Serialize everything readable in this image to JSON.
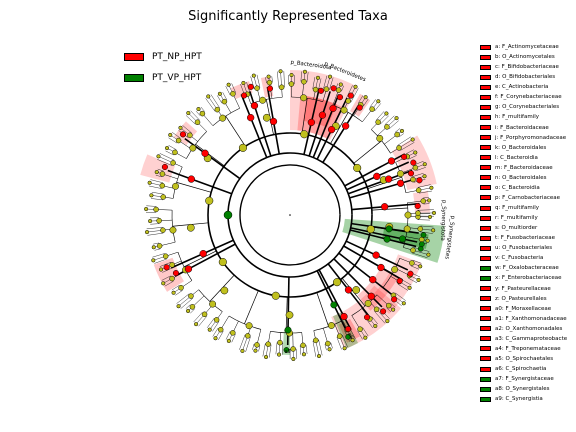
{
  "title": "Significantly Represented Taxa",
  "colors": {
    "PT_NP_HPT": "#ff0000",
    "PT_VP_HPT": "#008000",
    "node": "#c0c01e",
    "line": "#000000"
  },
  "groups": [
    {
      "name": "PT_NP_HPT",
      "color": "#ff0000"
    },
    {
      "name": "PT_VP_HPT",
      "color": "#008000"
    }
  ],
  "taxa_legend": [
    {
      "text": "a: F_Actinomycetaceae",
      "group": "PT_NP_HPT"
    },
    {
      "text": "b: O_Actinomycetales",
      "group": "PT_NP_HPT"
    },
    {
      "text": "c: F_Bifidobacteriaceae",
      "group": "PT_NP_HPT"
    },
    {
      "text": "d: O_Bifidobacteriales",
      "group": "PT_NP_HPT"
    },
    {
      "text": "e: C_Actinobacteria",
      "group": "PT_NP_HPT"
    },
    {
      "text": "f: F_Corynebacteriaceae",
      "group": "PT_NP_HPT"
    },
    {
      "text": "g: O_Corynebacteriales",
      "group": "PT_NP_HPT"
    },
    {
      "text": "h: F_multifamily",
      "group": "PT_NP_HPT"
    },
    {
      "text": "i: F_Bacteroidaceae",
      "group": "PT_NP_HPT"
    },
    {
      "text": "j: F_Porphyromonadaceae",
      "group": "PT_NP_HPT"
    },
    {
      "text": "k: O_Bacteroidales",
      "group": "PT_NP_HPT"
    },
    {
      "text": "l: C_Bacteroidia",
      "group": "PT_NP_HPT"
    },
    {
      "text": "m: F_Bacteroidaceae",
      "group": "PT_NP_HPT"
    },
    {
      "text": "n: O_Bacteroidales",
      "group": "PT_NP_HPT"
    },
    {
      "text": "o: C_Bacteroidia",
      "group": "PT_NP_HPT"
    },
    {
      "text": "p: F_Carnobacteriaceae",
      "group": "PT_NP_HPT"
    },
    {
      "text": "q: F_multifamily",
      "group": "PT_NP_HPT"
    },
    {
      "text": "r: F_multifamily",
      "group": "PT_NP_HPT"
    },
    {
      "text": "s: O_multiorder",
      "group": "PT_NP_HPT"
    },
    {
      "text": "t: F_Fusobacteriaceae",
      "group": "PT_NP_HPT"
    },
    {
      "text": "u: O_Fusobacteriales",
      "group": "PT_NP_HPT"
    },
    {
      "text": "v: C_Fusobacteria",
      "group": "PT_NP_HPT"
    },
    {
      "text": "w: F_Oxalobacteraceae",
      "group": "PT_VP_HPT"
    },
    {
      "text": "x: F_Enterobacteriaceae",
      "group": "PT_VP_HPT"
    },
    {
      "text": "y: F_Pasteurellaceae",
      "group": "PT_NP_HPT"
    },
    {
      "text": "z: O_Pasteurellales",
      "group": "PT_NP_HPT"
    },
    {
      "text": "a0: F_Moraxellaceae",
      "group": "PT_NP_HPT"
    },
    {
      "text": "a1: F_Xanthomonadaceae",
      "group": "PT_NP_HPT"
    },
    {
      "text": "a2: O_Xanthomonadales",
      "group": "PT_NP_HPT"
    },
    {
      "text": "a3: C_Gammaproteobacte",
      "group": "PT_NP_HPT"
    },
    {
      "text": "a4: F_Treponemataceae",
      "group": "PT_NP_HPT"
    },
    {
      "text": "a5: O_Spirochaetales",
      "group": "PT_NP_HPT"
    },
    {
      "text": "a6: C_Spirochaetia",
      "group": "PT_NP_HPT"
    },
    {
      "text": "a7: F_Synergistaceae",
      "group": "PT_VP_HPT"
    },
    {
      "text": "a8: O_Synergistales",
      "group": "PT_VP_HPT"
    },
    {
      "text": "a9: C_Synergistia",
      "group": "PT_VP_HPT"
    }
  ],
  "clade_labels": [
    {
      "text": "p_Bacteroidota",
      "group": "PT_NP_HPT"
    },
    {
      "text": "p_Bacteroidetes",
      "group": "PT_NP_HPT"
    },
    {
      "text": "p_Synergistota",
      "group": "PT_VP_HPT"
    },
    {
      "text": "p_Synergistetes",
      "group": "PT_VP_HPT"
    },
    {
      "text": "a6",
      "group": "PT_NP_HPT"
    },
    {
      "text": "a9",
      "group": "PT_VP_HPT"
    }
  ]
}
